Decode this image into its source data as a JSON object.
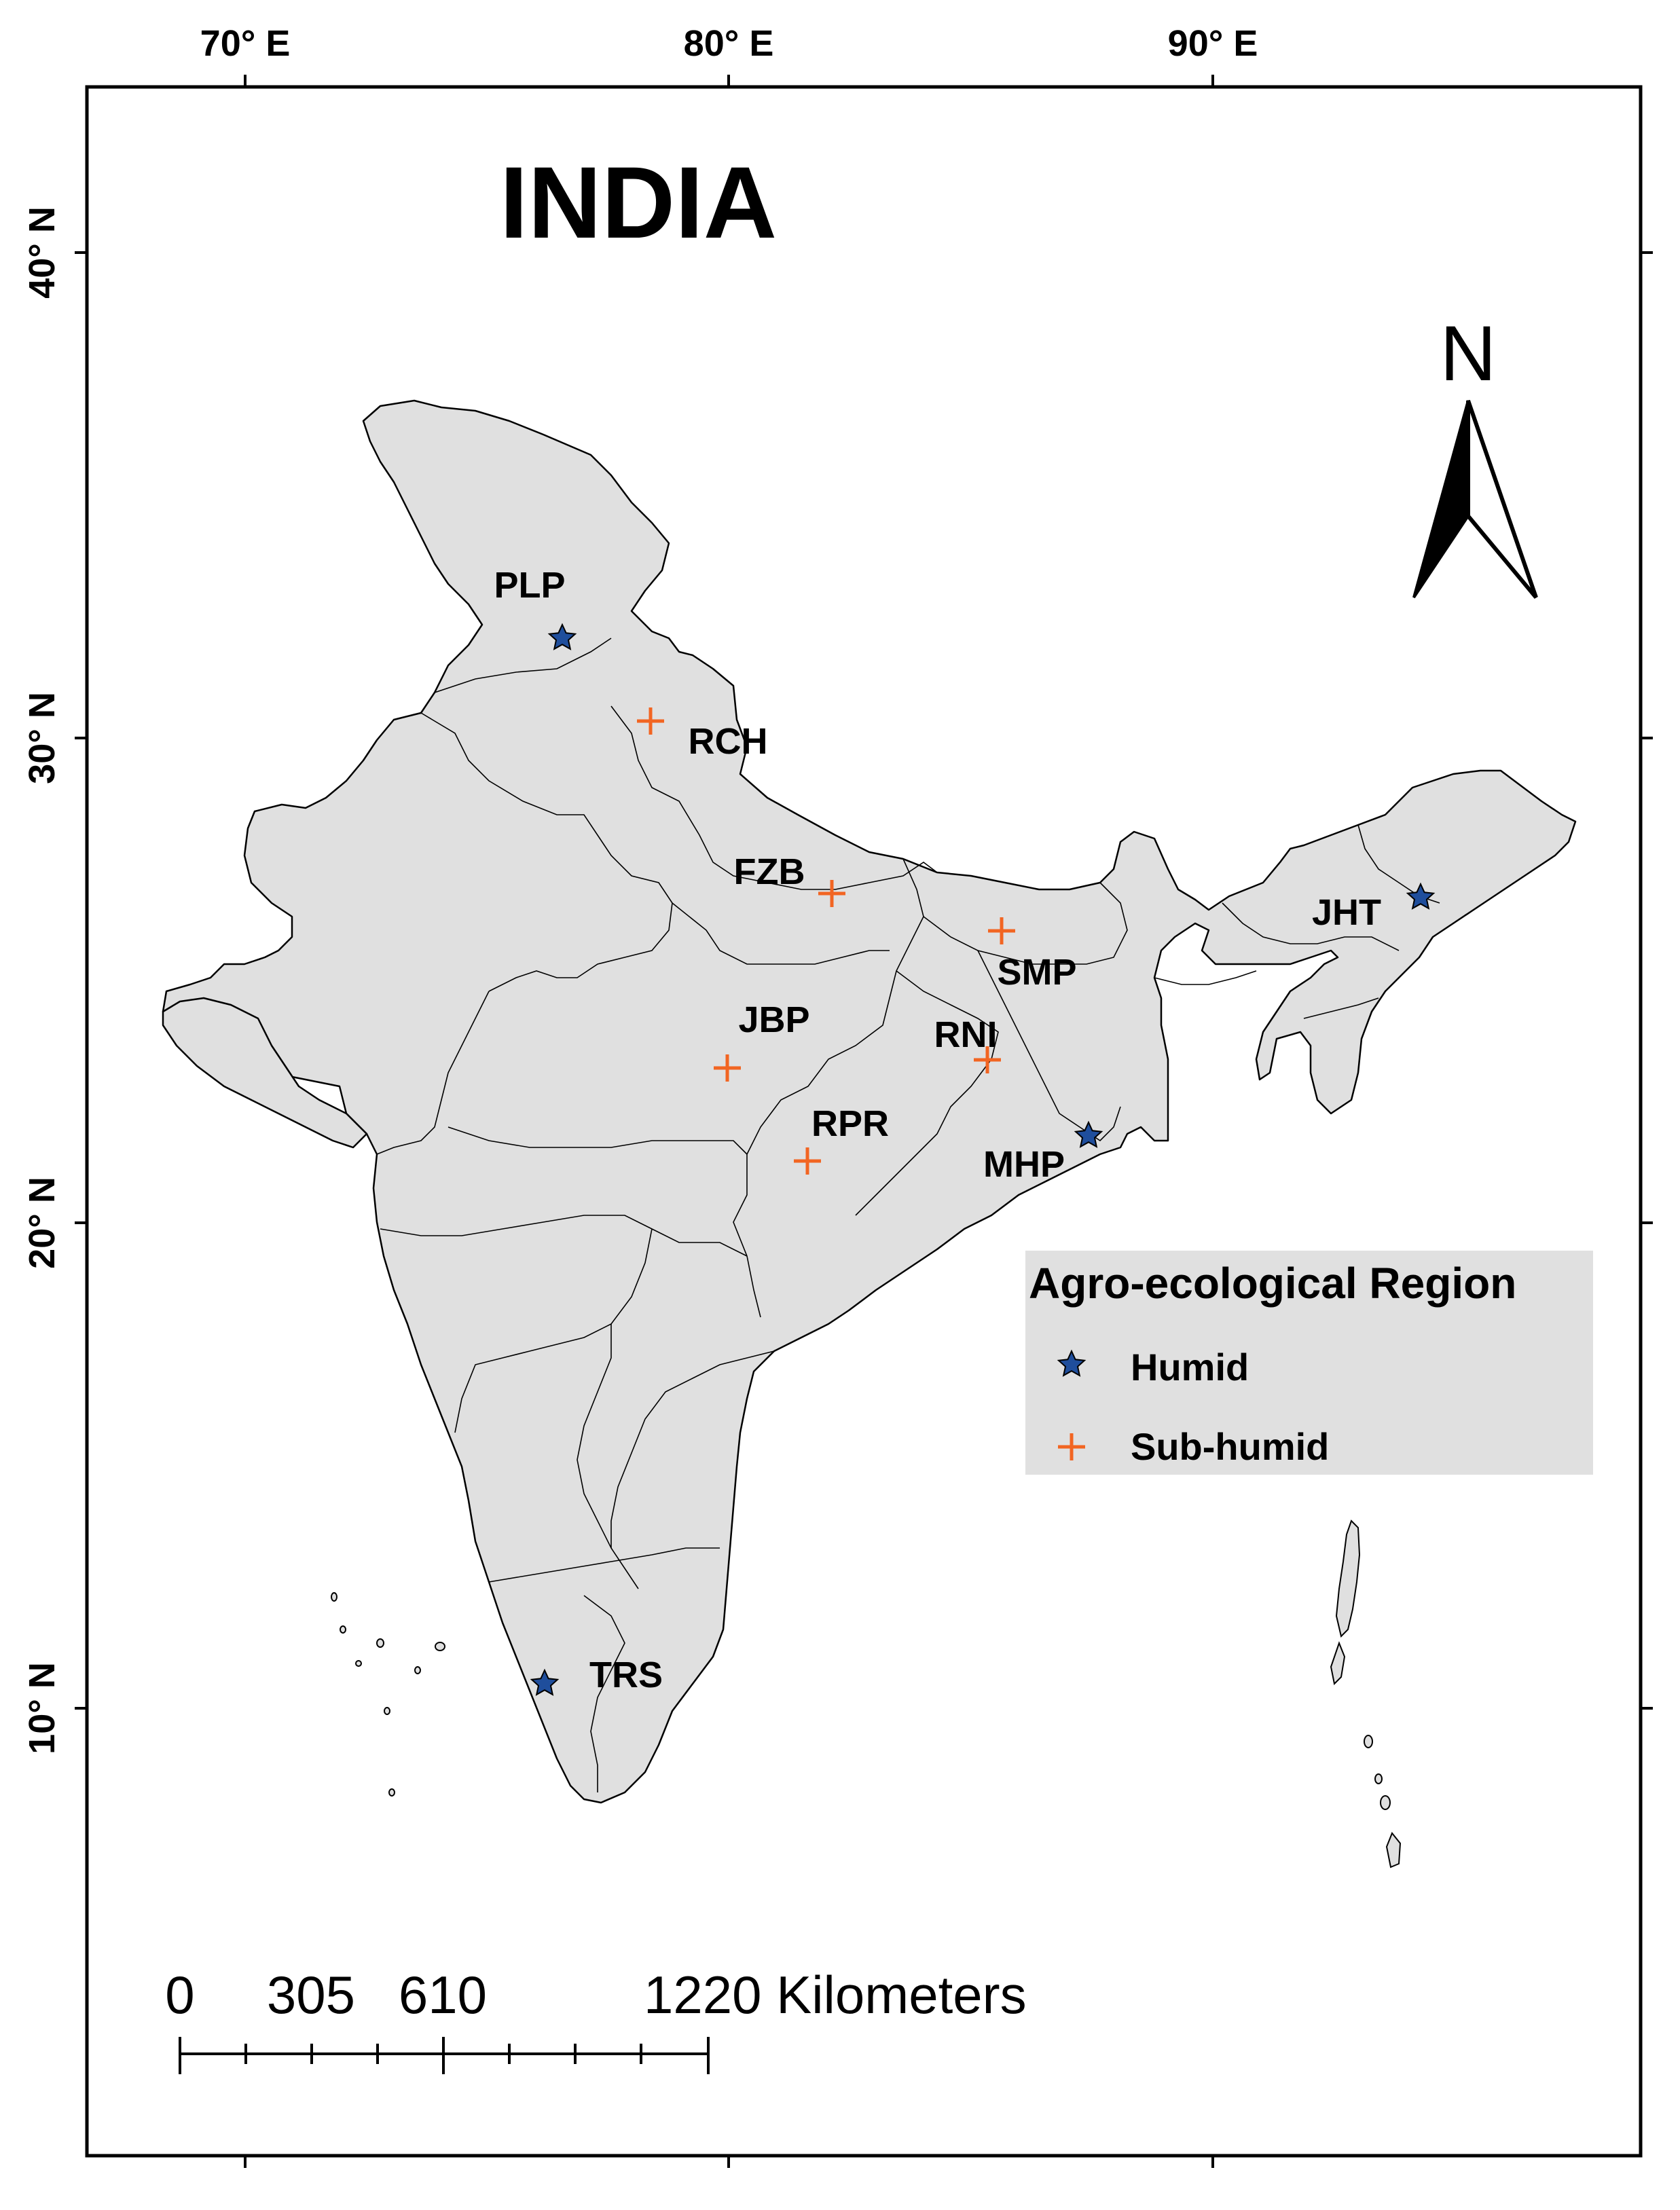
{
  "title": "INDIA",
  "north_arrow": {
    "label": "N"
  },
  "graticule": {
    "longitude_labels": [
      "70° E",
      "80° E",
      "90° E"
    ],
    "latitude_labels": [
      "40° N",
      "30° N",
      "20° N",
      "10° N"
    ]
  },
  "legend": {
    "title": "Agro-ecological Region",
    "items": [
      {
        "label": "Humid",
        "symbol": "star",
        "color": "#1f4e9c"
      },
      {
        "label": "Sub-humid",
        "symbol": "plus",
        "color": "#f26522"
      }
    ]
  },
  "sites": [
    {
      "code": "PLP",
      "region": "Humid"
    },
    {
      "code": "RCH",
      "region": "Sub-humid"
    },
    {
      "code": "FZB",
      "region": "Sub-humid"
    },
    {
      "code": "SMP",
      "region": "Sub-humid"
    },
    {
      "code": "JHT",
      "region": "Humid"
    },
    {
      "code": "JBP",
      "region": "Sub-humid"
    },
    {
      "code": "RNI",
      "region": "Sub-humid"
    },
    {
      "code": "RPR",
      "region": "Sub-humid"
    },
    {
      "code": "MHP",
      "region": "Humid"
    },
    {
      "code": "TRS",
      "region": "Humid"
    }
  ],
  "scale_bar": {
    "labels": [
      "0",
      "305",
      "610",
      "1220 Kilometers"
    ]
  },
  "colors": {
    "land": "#e0e0e0",
    "border": "#000000",
    "humid": "#1f4e9c",
    "sub_humid": "#f26522",
    "legend_bg": "#e0e0e0"
  }
}
